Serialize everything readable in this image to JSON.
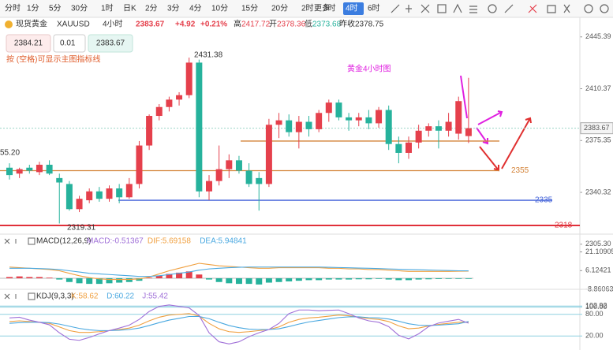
{
  "toolbar": {
    "timeframes": [
      "分时",
      "1分",
      "5分",
      "30分",
      "1时",
      "日K",
      "2分",
      "3分",
      "4分",
      "10分",
      "15分",
      "20分",
      "2时",
      "3时",
      "4时",
      "6时"
    ],
    "active": 14,
    "more": "更多"
  },
  "quote": {
    "name": "现货黄金",
    "symbol": "XAUUSD",
    "period": "4小时",
    "price": "2383.67",
    "change": "+4.92",
    "change_pct": "+0.21%",
    "high_label": "高",
    "high": "2417.72",
    "open_label": "开",
    "open": "2378.36",
    "low_label": "低",
    "low": "2373.68",
    "prev_label": "昨收",
    "prev": "2378.75"
  },
  "order": {
    "sell": "2384.21",
    "lot": "0.01",
    "buy": "2383.67"
  },
  "hint": "按 (空格)可显示主图指标线",
  "chart_data": [
    {
      "type": "candlestick",
      "title": "黄金4小时图",
      "up_color": "#e5404c",
      "down_color": "#26b29c",
      "open": [
        2357,
        2353,
        2357,
        2354,
        2359,
        2350,
        2346,
        2329,
        2335,
        2341,
        2336,
        2343,
        2337,
        2346,
        2372,
        2392,
        2398,
        2403,
        2406,
        2428,
        2341,
        2348,
        2356,
        2362,
        2355,
        2350,
        2346,
        2386,
        2389,
        2381,
        2388,
        2383,
        2394,
        2401,
        2391,
        2389,
        2391,
        2387,
        2396,
        2373,
        2367,
        2374,
        2382,
        2385,
        2382,
        2380,
        2378.36
      ],
      "high": [
        2360,
        2357,
        2359,
        2361,
        2362,
        2353,
        2348,
        2338,
        2343,
        2344,
        2345,
        2346,
        2350,
        2375,
        2393,
        2400,
        2405,
        2408,
        2431.38,
        2430,
        2352,
        2372,
        2366,
        2365,
        2360,
        2354,
        2390,
        2394,
        2393,
        2392,
        2392,
        2396,
        2403,
        2403,
        2394,
        2394,
        2396,
        2398,
        2399,
        2378,
        2378,
        2386,
        2387,
        2389,
        2394,
        2405,
        2417.72
      ],
      "low": [
        2349,
        2350,
        2353,
        2352,
        2352,
        2319.31,
        2328,
        2327,
        2333,
        2334,
        2334,
        2333,
        2336,
        2343,
        2369,
        2389,
        2395,
        2399,
        2404,
        2337,
        2335,
        2345,
        2350,
        2353,
        2344,
        2328,
        2344,
        2377,
        2378,
        2370,
        2378,
        2381,
        2388,
        2389,
        2382,
        2385,
        2383,
        2384,
        2369,
        2360,
        2363,
        2370,
        2378,
        2370,
        2378,
        2376,
        2373.68
      ],
      "close": [
        2352,
        2356,
        2355,
        2359,
        2353,
        2347,
        2329,
        2336,
        2341,
        2336,
        2343,
        2337,
        2346,
        2372,
        2392,
        2398,
        2403,
        2406,
        2428,
        2341,
        2348,
        2356,
        2362,
        2355,
        2346,
        2346,
        2386,
        2389,
        2381,
        2388,
        2383,
        2394,
        2401,
        2391,
        2389,
        2391,
        2387,
        2396,
        2373,
        2367,
        2374,
        2382,
        2385,
        2382,
        2388,
        2402,
        2383.67
      ],
      "ylim": [
        2302,
        2449
      ],
      "yticks": [
        2445.39,
        2410.37,
        2375.35,
        2340.32,
        {
          "value": 2305.3,
          "label": "2305.30"
        }
      ],
      "current": 2383.67,
      "annotations": [
        "2431.38",
        "2319.31",
        "55.20"
      ],
      "levels": [
        {
          "value": 2375,
          "color": "#d4843a"
        },
        {
          "value": 2355,
          "color": "#d4843a"
        },
        {
          "value": 2335,
          "color": "#3f5fd8"
        },
        {
          "value": 2318,
          "color": "#e0303a"
        }
      ]
    },
    {
      "type": "macd",
      "title": "MACD(12,26,9)",
      "macd_label": "MACD:-0.51367",
      "dif_label": "DIF:5.69158",
      "dea_label": "DEA:5.94841",
      "ylim": [
        -12,
        24
      ],
      "yticks": [
        21.10905,
        6.12421,
        -8.86063
      ],
      "series": [
        {
          "name": "MACD",
          "color": "#e5404c",
          "values": [
            1,
            1.5,
            1,
            1,
            0.5,
            -1,
            -3,
            -4,
            -4.5,
            -4.5,
            -4,
            -3.5,
            -3,
            -2,
            0.5,
            2,
            3.5,
            4.5,
            5.5,
            3,
            -1,
            -3,
            -4,
            -4.5,
            -4.5,
            -5,
            -3.5,
            -3,
            -2.5,
            -2,
            -1.5,
            -1.5,
            -1,
            -1,
            -1,
            -0.8,
            -0.8,
            -0.5,
            -1,
            -1.5,
            -1.5,
            -1,
            -0.8,
            -0.6,
            -0.5,
            -0.5,
            -0.51367
          ]
        },
        {
          "name": "DIF",
          "color": "#f0a040",
          "values": [
            9,
            8.5,
            8,
            7.5,
            7,
            6,
            4,
            2,
            0.5,
            -0.5,
            -1,
            -1,
            -1,
            -0.5,
            1,
            3.5,
            6,
            8,
            10,
            12,
            11,
            10,
            9.5,
            9,
            8.5,
            8,
            8,
            8.5,
            8.5,
            8.5,
            8.5,
            8.5,
            8,
            8,
            7.5,
            7.5,
            7,
            7,
            6.5,
            6,
            5.5,
            5.5,
            5.5,
            5.5,
            5.5,
            5.6,
            5.69158
          ]
        },
        {
          "name": "DEA",
          "color": "#4aa8e0",
          "values": [
            8,
            8,
            8,
            7.8,
            7.5,
            7,
            6,
            5,
            4,
            3.5,
            3,
            2.5,
            2,
            1.5,
            1.5,
            2,
            3,
            4,
            5,
            6.5,
            7.5,
            8,
            8.5,
            8.8,
            9,
            9,
            9,
            9,
            9,
            9,
            9,
            9,
            8.8,
            8.6,
            8.4,
            8.2,
            8,
            7.8,
            7.5,
            7.2,
            7,
            6.8,
            6.6,
            6.4,
            6.2,
            6,
            5.94841
          ]
        }
      ]
    },
    {
      "type": "kdj",
      "title": "KDJ(9,3,3)",
      "k_label": "K:58.62",
      "d_label": "D:60.22",
      "j_label": "J:55.42",
      "ylim": [
        -10,
        110
      ],
      "yticks": [
        {
          "value": 102.92,
          "label": "102.92"
        },
        {
          "value": 100,
          "label": "100.00"
        },
        {
          "value": 80,
          "label": "80.00"
        },
        {
          "value": 20,
          "label": "20.00"
        }
      ],
      "series": [
        {
          "name": "K",
          "color": "#f0a040",
          "values": [
            60,
            62,
            60,
            58,
            55,
            45,
            35,
            30,
            30,
            32,
            35,
            38,
            42,
            50,
            62,
            72,
            78,
            80,
            82,
            75,
            55,
            40,
            32,
            30,
            32,
            35,
            38,
            45,
            58,
            66,
            70,
            72,
            75,
            78,
            76,
            72,
            68,
            66,
            60,
            48,
            40,
            42,
            48,
            52,
            55,
            58,
            58.62
          ]
        },
        {
          "name": "D",
          "color": "#4aa8e0",
          "values": [
            55,
            57,
            58,
            58,
            57,
            53,
            47,
            41,
            37,
            35,
            35,
            36,
            38,
            42,
            49,
            57,
            64,
            69,
            74,
            74,
            68,
            58,
            49,
            43,
            39,
            38,
            38,
            40,
            46,
            53,
            59,
            63,
            67,
            71,
            73,
            73,
            71,
            70,
            67,
            61,
            54,
            50,
            49,
            50,
            52,
            54,
            60.22
          ]
        },
        {
          "name": "J",
          "color": "#a070d8",
          "values": [
            70,
            72,
            64,
            58,
            51,
            29,
            11,
            8,
            16,
            26,
            35,
            42,
            50,
            66,
            88,
            102,
            106,
            102,
            98,
            77,
            29,
            4,
            -2,
            4,
            18,
            29,
            38,
            55,
            82,
            92,
            92,
            90,
            91,
            92,
            82,
            70,
            62,
            58,
            46,
            22,
            12,
            26,
            46,
            56,
            61,
            66,
            55.42
          ]
        }
      ]
    }
  ]
}
